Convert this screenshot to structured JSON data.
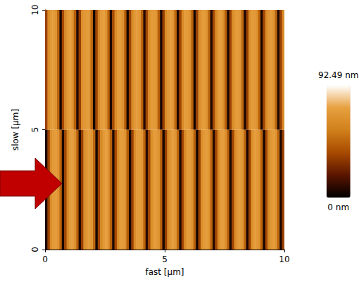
{
  "chart_data": {
    "type": "heatmap",
    "x_label": "fast [µm]",
    "y_label": "slow [µm]",
    "xlim": [
      0,
      10
    ],
    "ylim": [
      0,
      10
    ],
    "xticks": [
      0,
      5,
      10
    ],
    "yticks": [
      0,
      5,
      10
    ],
    "grid": false,
    "x_bins": [
      0,
      0.1,
      0.2,
      0.3,
      0.4,
      0.5,
      0.6,
      0.7,
      0.8,
      0.9,
      1,
      1.1,
      1.2,
      1.3,
      1.4,
      1.5,
      1.6,
      1.7,
      1.8,
      1.9,
      2,
      2.1,
      2.2,
      2.3,
      2.4,
      2.5,
      2.6,
      2.7,
      2.8,
      2.9,
      3,
      3.1,
      3.2,
      3.3,
      3.4,
      3.5,
      3.6,
      3.7,
      3.8,
      3.9,
      4,
      4.1,
      4.2,
      4.3,
      4.4,
      4.5,
      4.6,
      4.7,
      4.8,
      4.9,
      5,
      5.1,
      5.2,
      5.3,
      5.4,
      5.5,
      5.6,
      5.7,
      5.8,
      5.9,
      6,
      6.1,
      6.2,
      6.3,
      6.4,
      6.5,
      6.6,
      6.7,
      6.8,
      6.9,
      7,
      7.1,
      7.2,
      7.3,
      7.4,
      7.5,
      7.6,
      7.7,
      7.8,
      7.9,
      8,
      8.1,
      8.2,
      8.3,
      8.4,
      8.5,
      8.6,
      8.7,
      8.8,
      8.9,
      9,
      9.1,
      9.2,
      9.3,
      9.4,
      9.5,
      9.6,
      9.7,
      9.8,
      9.9,
      10
    ],
    "y_bins": [
      0,
      5,
      10
    ],
    "cells": [
      [
        6,
        34,
        63,
        70,
        72,
        67,
        46,
        5,
        36,
        62,
        71,
        73,
        66,
        44,
        7,
        33,
        64,
        69,
        71,
        68,
        47,
        4,
        35,
        61,
        70,
        74,
        67,
        45,
        6,
        37,
        63,
        72,
        71,
        66,
        43,
        5,
        34,
        62,
        70,
        72,
        69,
        46,
        8,
        36,
        64,
        71,
        70,
        67,
        44,
        5,
        33,
        63,
        69,
        73,
        68,
        47,
        6,
        35,
        61,
        72,
        71,
        66,
        45,
        4,
        34,
        64,
        70,
        72,
        67,
        46,
        7,
        36,
        62,
        71,
        73,
        65,
        44,
        5,
        35,
        63,
        70,
        71,
        68,
        47,
        6,
        33,
        64,
        72,
        70,
        66,
        45,
        5,
        36,
        62,
        69,
        72,
        67,
        46,
        6,
        34
      ],
      [
        34,
        63,
        70,
        72,
        67,
        46,
        5,
        36,
        62,
        71,
        73,
        66,
        44,
        7,
        33,
        64,
        69,
        71,
        68,
        47,
        4,
        35,
        61,
        70,
        74,
        67,
        45,
        6,
        37,
        63,
        72,
        71,
        66,
        43,
        5,
        34,
        62,
        70,
        72,
        69,
        46,
        8,
        36,
        64,
        71,
        70,
        67,
        44,
        5,
        33,
        63,
        69,
        73,
        68,
        47,
        6,
        35,
        61,
        72,
        71,
        66,
        45,
        4,
        34,
        64,
        70,
        72,
        67,
        46,
        7,
        36,
        62,
        71,
        73,
        65,
        44,
        5,
        35,
        63,
        70,
        71,
        68,
        47,
        6,
        33,
        64,
        72,
        70,
        66,
        45,
        5,
        36,
        62,
        69,
        72,
        67,
        46,
        6,
        34,
        62
      ]
    ],
    "colorbar": {
      "range": [
        0,
        92.49
      ],
      "ticks": [
        {
          "value": 0,
          "label": "0 nm"
        },
        {
          "value": 92.49,
          "label": "92.49 nm"
        }
      ]
    }
  }
}
